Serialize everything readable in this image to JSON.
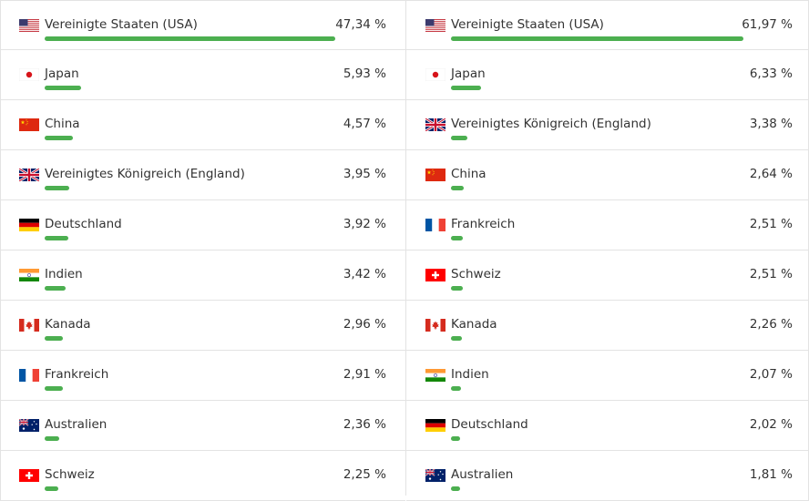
{
  "left": [
    {
      "name": "Vereinigte Staaten (USA)",
      "value": "47,34 %",
      "flag": "us-flag-icon",
      "share": 47.34
    },
    {
      "name": "Japan",
      "value": "5,93 %",
      "flag": "jp-flag-icon",
      "share": 5.93
    },
    {
      "name": "China",
      "value": "4,57 %",
      "flag": "cn-flag-icon",
      "share": 4.57
    },
    {
      "name": "Vereinigtes Königreich (England)",
      "value": "3,95 %",
      "flag": "gb-flag-icon",
      "share": 3.95
    },
    {
      "name": "Deutschland",
      "value": "3,92 %",
      "flag": "de-flag-icon",
      "share": 3.92
    },
    {
      "name": "Indien",
      "value": "3,42 %",
      "flag": "in-flag-icon",
      "share": 3.42
    },
    {
      "name": "Kanada",
      "value": "2,96 %",
      "flag": "ca-flag-icon",
      "share": 2.96
    },
    {
      "name": "Frankreich",
      "value": "2,91 %",
      "flag": "fr-flag-icon",
      "share": 2.91
    },
    {
      "name": "Australien",
      "value": "2,36 %",
      "flag": "au-flag-icon",
      "share": 2.36
    },
    {
      "name": "Schweiz",
      "value": "2,25 %",
      "flag": "ch-flag-icon",
      "share": 2.25
    }
  ],
  "right": [
    {
      "name": "Vereinigte Staaten (USA)",
      "value": "61,97 %",
      "flag": "us-flag-icon",
      "share": 61.97
    },
    {
      "name": "Japan",
      "value": "6,33 %",
      "flag": "jp-flag-icon",
      "share": 6.33
    },
    {
      "name": "Vereinigtes Königreich (England)",
      "value": "3,38 %",
      "flag": "gb-flag-icon",
      "share": 3.38
    },
    {
      "name": "China",
      "value": "2,64 %",
      "flag": "cn-flag-icon",
      "share": 2.64
    },
    {
      "name": "Frankreich",
      "value": "2,51 %",
      "flag": "fr-flag-icon",
      "share": 2.51
    },
    {
      "name": "Schweiz",
      "value": "2,51 %",
      "flag": "ch-flag-icon",
      "share": 2.51
    },
    {
      "name": "Kanada",
      "value": "2,26 %",
      "flag": "ca-flag-icon",
      "share": 2.26
    },
    {
      "name": "Indien",
      "value": "2,07 %",
      "flag": "in-flag-icon",
      "share": 2.07
    },
    {
      "name": "Deutschland",
      "value": "2,02 %",
      "flag": "de-flag-icon",
      "share": 2.02
    },
    {
      "name": "Australien",
      "value": "1,81 %",
      "flag": "au-flag-icon",
      "share": 1.81
    }
  ],
  "colors": {
    "bar": "#4caf50",
    "divider": "#e3e3e3",
    "text": "#333333"
  }
}
